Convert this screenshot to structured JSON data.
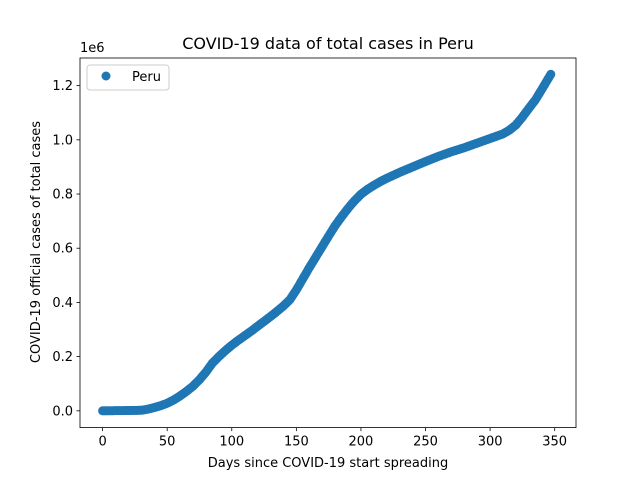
{
  "chart_data": {
    "type": "scatter",
    "title": "COVID-19 data of total cases in Peru",
    "xlabel": "Days since COVID-19 start spreading",
    "ylabel": "COVID-19 official cases of total cases",
    "y_offset_text": "1e6",
    "xlim": [
      -17.5,
      366.5
    ],
    "ylim": [
      -0.062,
      1.302
    ],
    "y_scale": 1000000,
    "x_ticks": [
      0,
      50,
      100,
      150,
      200,
      250,
      300,
      350
    ],
    "x_tick_labels": [
      "0",
      "50",
      "100",
      "150",
      "200",
      "250",
      "300",
      "350"
    ],
    "y_ticks": [
      0.0,
      0.2,
      0.4,
      0.6,
      0.8,
      1.0,
      1.2
    ],
    "y_tick_labels": [
      "0.0",
      "0.2",
      "0.4",
      "0.6",
      "0.8",
      "1.0",
      "1.2"
    ],
    "grid": false,
    "legend_position": "top-left",
    "series": [
      {
        "name": "Peru",
        "color": "#1f77b4",
        "marker": "circle",
        "x": [
          0,
          10,
          20,
          30,
          35,
          40,
          45,
          50,
          55,
          60,
          65,
          70,
          75,
          80,
          85,
          90,
          95,
          100,
          105,
          110,
          115,
          120,
          125,
          130,
          135,
          140,
          145,
          150,
          155,
          160,
          165,
          170,
          175,
          180,
          185,
          190,
          195,
          200,
          205,
          210,
          215,
          220,
          230,
          240,
          250,
          260,
          270,
          280,
          290,
          300,
          310,
          315,
          320,
          325,
          330,
          335,
          340,
          345,
          347
        ],
        "y": [
          0,
          0.0005,
          0.001,
          0.002,
          0.006,
          0.012,
          0.019,
          0.028,
          0.04,
          0.055,
          0.072,
          0.091,
          0.115,
          0.143,
          0.176,
          0.2,
          0.222,
          0.242,
          0.26,
          0.277,
          0.294,
          0.312,
          0.33,
          0.348,
          0.367,
          0.387,
          0.41,
          0.446,
          0.487,
          0.528,
          0.567,
          0.606,
          0.645,
          0.683,
          0.716,
          0.747,
          0.775,
          0.799,
          0.817,
          0.832,
          0.846,
          0.858,
          0.88,
          0.9,
          0.92,
          0.939,
          0.956,
          0.971,
          0.988,
          1.005,
          1.022,
          1.036,
          1.055,
          1.084,
          1.116,
          1.147,
          1.186,
          1.226,
          1.242
        ]
      }
    ]
  }
}
